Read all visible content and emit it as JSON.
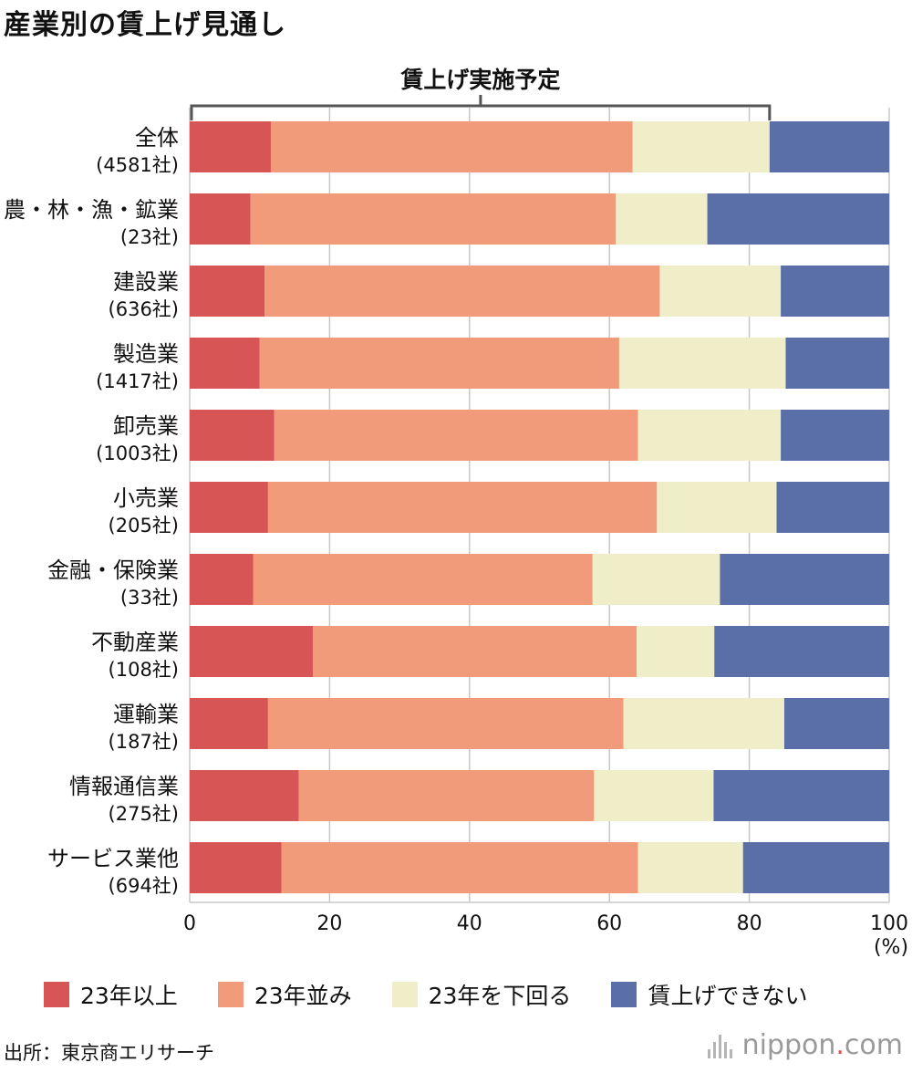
{
  "title": "産業別の賃上げ見通し",
  "source": "出所：東京商エリサーチ",
  "brand": {
    "name": "nippon",
    "dot": ".",
    "suffix": "com"
  },
  "colors": {
    "above_23": "#d85555",
    "same_23": "#f19b7b",
    "below_23": "#f0eec8",
    "no_raise": "#5a6ea8",
    "grid": "#c8c8c8",
    "bracket": "#555555"
  },
  "chart_data": {
    "type": "bar",
    "orientation": "horizontal",
    "stacked": true,
    "bracket_label": "賃上げ実施予定",
    "categories": [
      {
        "name": "全体",
        "count": "(4581社)"
      },
      {
        "name": "農・林・漁・鉱業",
        "count": "(23社)"
      },
      {
        "name": "建設業",
        "count": "(636社)"
      },
      {
        "name": "製造業",
        "count": "(1417社)"
      },
      {
        "name": "卸売業",
        "count": "(1003社)"
      },
      {
        "name": "小売業",
        "count": "(205社)"
      },
      {
        "name": "金融・保険業",
        "count": "(33社)"
      },
      {
        "name": "不動産業",
        "count": "(108社)"
      },
      {
        "name": "運輸業",
        "count": "(187社)"
      },
      {
        "name": "情報通信業",
        "count": "(275社)"
      },
      {
        "name": "サービス業他",
        "count": "(694社)"
      }
    ],
    "series": [
      {
        "name": "23年以上",
        "color_key": "above_23",
        "values": [
          11.6,
          8.7,
          10.7,
          10.0,
          12.1,
          11.2,
          9.1,
          17.6,
          11.2,
          15.6,
          13.1
        ]
      },
      {
        "name": "23年並み",
        "color_key": "same_23",
        "values": [
          51.7,
          52.2,
          56.5,
          51.4,
          52.0,
          55.6,
          48.5,
          46.3,
          50.8,
          42.2,
          51.0
        ]
      },
      {
        "name": "23年を下回る",
        "color_key": "below_23",
        "values": [
          19.6,
          13.1,
          17.3,
          23.8,
          20.4,
          17.1,
          18.2,
          11.1,
          23.0,
          17.1,
          15.0
        ]
      },
      {
        "name": "賃上げできない",
        "color_key": "no_raise",
        "values": [
          17.1,
          26.0,
          15.5,
          14.8,
          15.5,
          16.1,
          24.2,
          25.0,
          15.0,
          25.1,
          20.9
        ]
      }
    ],
    "x_ticks": [
      "0",
      "20",
      "40",
      "60",
      "80",
      "100"
    ],
    "x_unit": "(%)",
    "xlim": [
      0,
      100
    ],
    "bracket_range": [
      0,
      82.9
    ],
    "grid": true,
    "legend_position": "bottom"
  }
}
